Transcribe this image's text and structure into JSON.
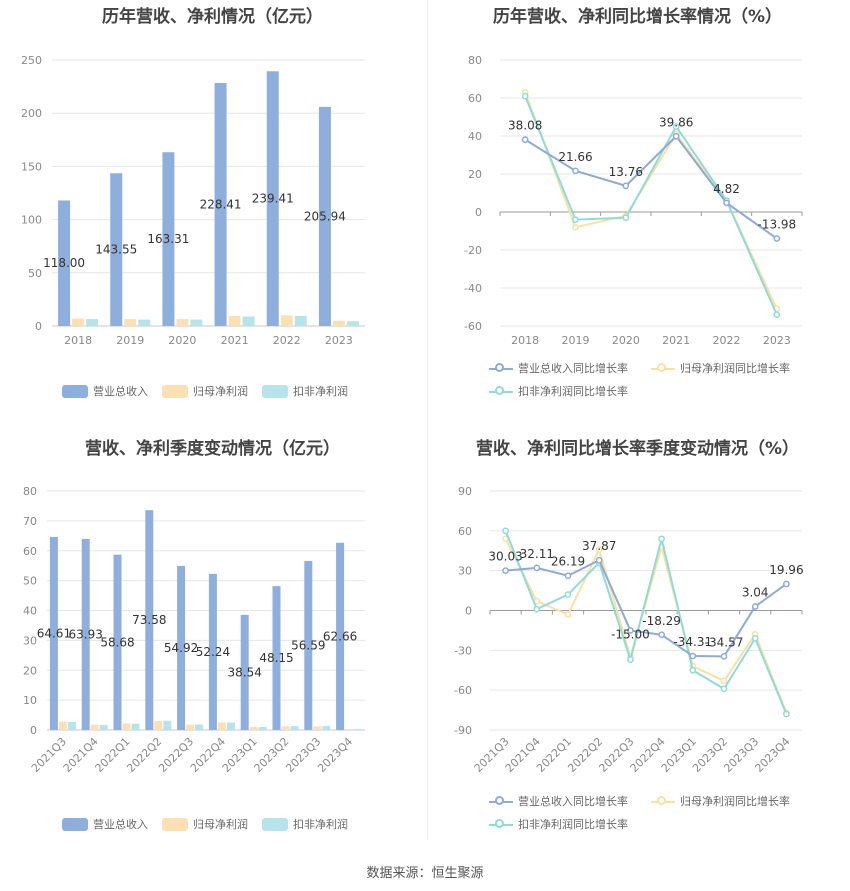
{
  "source_text": "数据来源：恒生聚源",
  "colors": {
    "revenue": "#8eaedc",
    "net_profit": "#fbe0b4",
    "deducted_profit": "#b6e4ea",
    "revenue_line": "#8eaad6",
    "net_line": "#fbe0a0",
    "deducted_line": "#8fdbd9"
  },
  "chart_data": [
    {
      "type": "bar",
      "title": "历年营收、净利情况（亿元）",
      "categories": [
        "2018",
        "2019",
        "2020",
        "2021",
        "2022",
        "2023"
      ],
      "ylim": [
        0,
        250
      ],
      "yticks": [
        "0",
        "50",
        "100",
        "150",
        "200",
        "250"
      ],
      "series": [
        {
          "name": "营业总收入",
          "values": [
            118.0,
            143.55,
            163.31,
            228.41,
            239.41,
            205.94
          ],
          "labels": [
            "118.00",
            "143.55",
            "163.31",
            "228.41",
            "239.41",
            "205.94"
          ]
        },
        {
          "name": "归母净利润",
          "values": [
            7.0,
            6.5,
            6.5,
            9.5,
            10.0,
            5.0
          ]
        },
        {
          "name": "扣非净利润",
          "values": [
            6.5,
            6.0,
            6.0,
            9.0,
            9.5,
            4.5
          ]
        }
      ],
      "grid": true,
      "legend": "bottom"
    },
    {
      "type": "line",
      "title": "历年营收、净利同比增长率情况（%）",
      "categories": [
        "2018",
        "2019",
        "2020",
        "2021",
        "2022",
        "2023"
      ],
      "ylim": [
        -60,
        80
      ],
      "yticks": [
        "80",
        "60",
        "40",
        "20",
        "0",
        "-20",
        "-40",
        "-60"
      ],
      "series": [
        {
          "name": "营业总收入同比增长率",
          "values": [
            38.08,
            21.66,
            13.76,
            39.86,
            4.82,
            -13.98
          ],
          "labels": [
            "38.08",
            "21.66",
            "13.76",
            "39.86",
            "4.82",
            "-13.98"
          ]
        },
        {
          "name": "归母净利润同比增长率",
          "values": [
            63,
            -8,
            -2,
            41,
            6,
            -51
          ]
        },
        {
          "name": "扣非净利润同比增长率",
          "values": [
            61,
            -4,
            -3,
            45,
            6,
            -54
          ]
        }
      ],
      "grid": true,
      "legend": "bottom"
    },
    {
      "type": "bar",
      "title": "营收、净利季度变动情况（亿元）",
      "categories": [
        "2021Q3",
        "2021Q4",
        "2022Q1",
        "2022Q2",
        "2022Q3",
        "2022Q4",
        "2023Q1",
        "2023Q2",
        "2023Q3",
        "2023Q4"
      ],
      "ylim": [
        0,
        80
      ],
      "yticks": [
        "0",
        "10",
        "20",
        "30",
        "40",
        "50",
        "60",
        "70",
        "80"
      ],
      "series": [
        {
          "name": "营业总收入",
          "values": [
            64.61,
            63.93,
            58.68,
            73.58,
            54.92,
            52.24,
            38.54,
            48.15,
            56.59,
            62.66
          ],
          "labels": [
            "64.61",
            "63.93",
            "58.68",
            "73.58",
            "54.92",
            "52.24",
            "38.54",
            "48.15",
            "56.59",
            "62.66"
          ]
        },
        {
          "name": "归母净利润",
          "values": [
            2.8,
            1.8,
            2.2,
            3.0,
            1.8,
            2.5,
            1.0,
            1.2,
            1.2,
            0.3
          ]
        },
        {
          "name": "扣非净利润",
          "values": [
            2.7,
            1.7,
            2.1,
            3.1,
            1.8,
            2.5,
            1.0,
            1.3,
            1.3,
            0.3
          ]
        }
      ],
      "grid": true,
      "legend": "bottom"
    },
    {
      "type": "line",
      "title": "营收、净利同比增长率季度变动情况（%）",
      "categories": [
        "2021Q3",
        "2021Q4",
        "2022Q1",
        "2022Q2",
        "2022Q3",
        "2022Q4",
        "2023Q1",
        "2023Q2",
        "2023Q3",
        "2023Q4"
      ],
      "ylim": [
        -90,
        90
      ],
      "yticks": [
        "90",
        "60",
        "30",
        "0",
        "-30",
        "-60",
        "-90"
      ],
      "series": [
        {
          "name": "营业总收入同比增长率",
          "values": [
            30.03,
            32.11,
            26.19,
            37.87,
            -15.0,
            -18.29,
            -34.31,
            -34.57,
            3.04,
            19.96
          ],
          "labels": [
            "30.03",
            "32.11",
            "26.19",
            "37.87",
            "-15.00",
            "-18.29",
            "-34.31",
            "-34.57",
            "3.04",
            "19.96"
          ]
        },
        {
          "name": "归母净利润同比增长率",
          "values": [
            54,
            7,
            -3,
            46,
            -35,
            48,
            -42,
            -53,
            -18,
            -77
          ]
        },
        {
          "name": "扣非净利润同比增长率",
          "values": [
            60,
            1,
            12,
            36,
            -37,
            54,
            -45,
            -59,
            -21,
            -78
          ]
        }
      ],
      "grid": true,
      "legend": "bottom"
    }
  ]
}
